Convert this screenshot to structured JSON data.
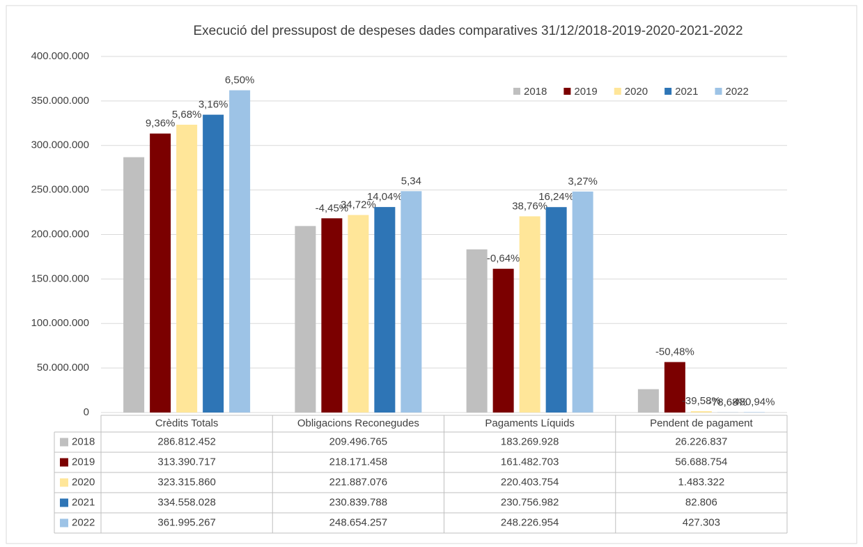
{
  "chart_data": {
    "type": "bar",
    "title": "Execució del pressupost de despeses dades comparatives 31/12/2018-2019-2020-2021-2022",
    "categories": [
      "Crèdits Totals",
      "Obligacions Reconegudes",
      "Pagaments Líquids",
      "Pendent de pagament"
    ],
    "series": [
      {
        "name": "2018",
        "color": "#bfbfbf",
        "values": [
          286812452,
          209496765,
          183269928,
          26226837
        ],
        "value_labels": [
          "286.812.452",
          "209.496.765",
          "183.269.928",
          "26.226.837"
        ],
        "annotations": [
          null,
          null,
          null,
          null
        ]
      },
      {
        "name": "2019",
        "color": "#7b0000",
        "values": [
          313390717,
          218171458,
          161482703,
          56688754
        ],
        "value_labels": [
          "313.390.717",
          "218.171.458",
          "161.482.703",
          "56.688.754"
        ],
        "annotations": [
          "9,36%",
          "-4,45%",
          "-0,64%",
          "-50,48%"
        ]
      },
      {
        "name": "2020",
        "color": "#ffe699",
        "values": [
          323315860,
          221887076,
          220403754,
          1483322
        ],
        "value_labels": [
          "323.315.860",
          "221.887.076",
          "220.403.754",
          "1.483.322"
        ],
        "annotations": [
          "5,68%",
          "34,72%",
          "38,76%",
          "-39,58%"
        ]
      },
      {
        "name": "2021",
        "color": "#2e75b6",
        "values": [
          334558028,
          230839788,
          230756982,
          82806
        ],
        "value_labels": [
          "334.558.028",
          "230.839.788",
          "230.756.982",
          "82.806"
        ],
        "annotations": [
          "3,16%",
          "14,04%",
          "16,24%",
          "-78,68%"
        ]
      },
      {
        "name": "2022",
        "color": "#9dc3e6",
        "values": [
          361995267,
          248654257,
          248226954,
          427303
        ],
        "value_labels": [
          "361.995.267",
          "248.654.257",
          "248.226.954",
          "427.303"
        ],
        "annotations": [
          "6,50%",
          "5,34",
          "3,27%",
          "480,94%"
        ]
      }
    ],
    "ylim": [
      0,
      400000000
    ],
    "yticks": [
      0,
      {
        "value": 50000000,
        "label": "50.000.000"
      },
      {
        "value": 100000000,
        "label": "100.000.000"
      },
      {
        "value": 150000000,
        "label": "150.000.000"
      },
      {
        "value": 200000000,
        "label": "200.000.000"
      },
      {
        "value": 250000000,
        "label": "250.000.000"
      },
      {
        "value": 300000000,
        "label": "300.000.000"
      },
      {
        "value": 350000000,
        "label": "350.000.000"
      },
      {
        "value": 400000000,
        "label": "400.000.000"
      }
    ],
    "grid": true,
    "legend": "top-right"
  }
}
